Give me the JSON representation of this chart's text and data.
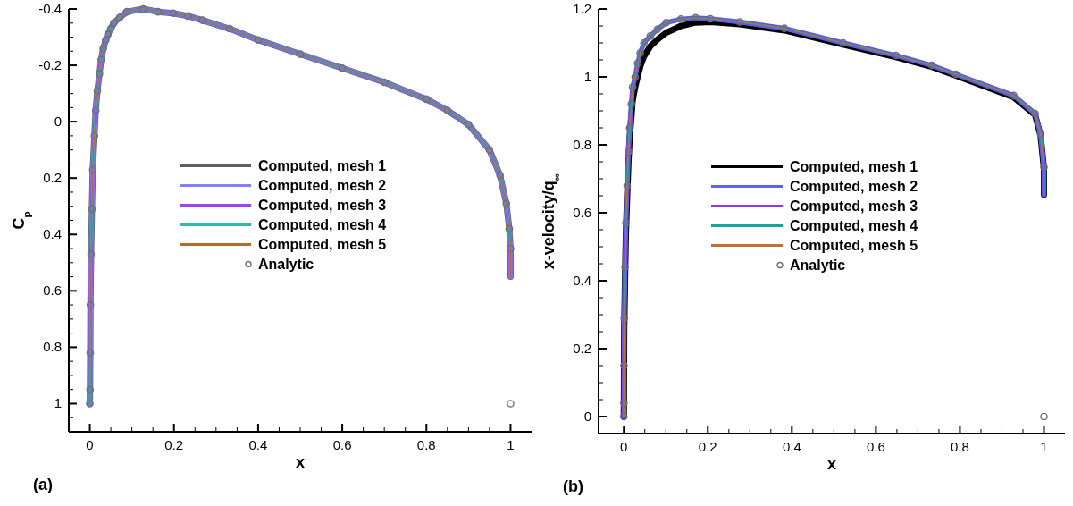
{
  "chart_data": [
    {
      "type": "line",
      "xlabel": "x",
      "ylabel": "C$_{p}$",
      "annotations": [
        "(a)"
      ],
      "legend": "center",
      "xlim": [
        -0.05,
        1.05
      ],
      "ylim": [
        1.1,
        -0.4
      ],
      "xticks": [
        0,
        {
          "value": 0.05,
          "label": null
        },
        {
          "value": 0.1,
          "label": null
        },
        {
          "value": 0.15,
          "label": null
        },
        0.2,
        {
          "value": 0.25,
          "label": null
        },
        {
          "value": 0.3,
          "label": null
        },
        {
          "value": 0.35,
          "label": null
        },
        0.4,
        {
          "value": 0.45,
          "label": null
        },
        {
          "value": 0.5,
          "label": null
        },
        {
          "value": 0.55,
          "label": null
        },
        0.6,
        {
          "value": 0.65,
          "label": null
        },
        {
          "value": 0.7,
          "label": null
        },
        {
          "value": 0.75,
          "label": null
        },
        0.8,
        {
          "value": 0.85,
          "label": null
        },
        {
          "value": 0.9,
          "label": null
        },
        {
          "value": 0.95,
          "label": null
        },
        1
      ],
      "yticks": [
        -0.4,
        {
          "value": -0.35,
          "label": null
        },
        {
          "value": -0.3,
          "label": null
        },
        {
          "value": -0.25,
          "label": null
        },
        -0.2,
        {
          "value": -0.15,
          "label": null
        },
        {
          "value": -0.1,
          "label": null
        },
        {
          "value": -0.05,
          "label": null
        },
        0,
        {
          "value": 0.05,
          "label": null
        },
        {
          "value": 0.1,
          "label": null
        },
        {
          "value": 0.15,
          "label": null
        },
        0.2,
        {
          "value": 0.25,
          "label": null
        },
        {
          "value": 0.3,
          "label": null
        },
        {
          "value": 0.35,
          "label": null
        },
        0.4,
        {
          "value": 0.45,
          "label": null
        },
        {
          "value": 0.5,
          "label": null
        },
        {
          "value": 0.55,
          "label": null
        },
        0.6,
        {
          "value": 0.65,
          "label": null
        },
        {
          "value": 0.7,
          "label": null
        },
        {
          "value": 0.75,
          "label": null
        },
        0.8,
        {
          "value": 0.85,
          "label": null
        },
        {
          "value": 0.9,
          "label": null
        },
        {
          "value": 0.95,
          "label": null
        },
        1,
        {
          "value": 1.05,
          "label": null
        }
      ],
      "x": [
        0,
        0.0005,
        0.001,
        0.0015,
        0.003,
        0.005,
        0.007,
        0.011,
        0.014,
        0.018,
        0.023,
        0.027,
        0.032,
        0.038,
        0.043,
        0.05,
        0.057,
        0.071,
        0.088,
        0.127,
        0.162,
        0.198,
        0.233,
        0.268,
        0.332,
        0.4,
        0.5,
        0.6,
        0.7,
        0.8,
        0.85,
        0.9,
        0.95,
        0.975,
        0.99,
        0.997,
        1,
        1
      ],
      "series": [
        {
          "name": "Computed, mesh 1",
          "color": "#606060",
          "values": [
            1.0,
            0.95,
            0.82,
            0.65,
            0.47,
            0.31,
            0.17,
            0.05,
            -0.04,
            -0.11,
            -0.17,
            -0.22,
            -0.26,
            -0.29,
            -0.31,
            -0.33,
            -0.35,
            -0.37,
            -0.39,
            -0.4,
            -0.39,
            -0.385,
            -0.375,
            -0.36,
            -0.33,
            -0.29,
            -0.24,
            -0.19,
            -0.14,
            -0.08,
            -0.04,
            0.01,
            0.1,
            0.19,
            0.29,
            0.38,
            0.45,
            0.55
          ]
        },
        {
          "name": "Computed, mesh 2",
          "color": "#8080ff",
          "values": [
            1.0,
            0.95,
            0.82,
            0.65,
            0.47,
            0.31,
            0.17,
            0.05,
            -0.04,
            -0.11,
            -0.17,
            -0.22,
            -0.26,
            -0.29,
            -0.31,
            -0.33,
            -0.35,
            -0.37,
            -0.39,
            -0.4,
            -0.39,
            -0.385,
            -0.375,
            -0.36,
            -0.33,
            -0.29,
            -0.24,
            -0.19,
            -0.14,
            -0.08,
            -0.04,
            0.01,
            0.1,
            0.19,
            0.29,
            0.38,
            0.45,
            0.55
          ]
        },
        {
          "name": "Computed, mesh 3",
          "color": "#a040f0",
          "values": [
            1.0,
            0.95,
            0.82,
            0.65,
            0.47,
            0.31,
            0.17,
            0.05,
            -0.04,
            -0.11,
            -0.17,
            -0.22,
            -0.26,
            -0.29,
            -0.31,
            -0.33,
            -0.35,
            -0.37,
            -0.39,
            -0.4,
            -0.39,
            -0.385,
            -0.375,
            -0.36,
            -0.33,
            -0.29,
            -0.24,
            -0.19,
            -0.14,
            -0.08,
            -0.04,
            0.01,
            0.1,
            0.19,
            0.29,
            0.38,
            0.45,
            0.55
          ]
        },
        {
          "name": "Computed, mesh 4",
          "color": "#30b8a8",
          "values": [
            1.0,
            0.95,
            0.82,
            0.65,
            0.47,
            0.31,
            0.17,
            0.05,
            -0.04,
            -0.11,
            -0.17,
            -0.22,
            -0.26,
            -0.29,
            -0.31,
            -0.33,
            -0.35,
            -0.37,
            -0.39,
            -0.4,
            -0.39,
            -0.385,
            -0.375,
            -0.36,
            -0.33,
            -0.29,
            -0.24,
            -0.19,
            -0.14,
            -0.08,
            -0.04,
            0.01,
            0.1,
            0.19,
            0.29,
            0.38,
            0.45,
            0.55
          ]
        },
        {
          "name": "Computed, mesh 5",
          "color": "#b06a2a",
          "values": [
            1.0,
            0.95,
            0.82,
            0.65,
            0.47,
            0.31,
            0.17,
            0.05,
            -0.04,
            -0.11,
            -0.17,
            -0.22,
            -0.26,
            -0.29,
            -0.31,
            -0.33,
            -0.35,
            -0.37,
            -0.39,
            -0.4,
            -0.39,
            -0.385,
            -0.375,
            -0.36,
            -0.33,
            -0.29,
            -0.24,
            -0.19,
            -0.14,
            -0.08,
            -0.04,
            0.01,
            0.1,
            0.19,
            0.29,
            0.38,
            0.45,
            0.55
          ]
        },
        {
          "name": "Analytic",
          "type": "scatter",
          "marker": "circle",
          "color": "#707070",
          "x": [
            0,
            0.0005,
            0.001,
            0.0015,
            0.003,
            0.005,
            0.007,
            0.011,
            0.014,
            0.018,
            0.023,
            0.027,
            0.032,
            0.038,
            0.043,
            0.05,
            0.057,
            0.071,
            0.088,
            0.127,
            0.162,
            0.198,
            0.233,
            0.268,
            0.332,
            0.4,
            0.5,
            0.6,
            0.7,
            0.8,
            0.85,
            0.9,
            0.95,
            0.975,
            0.99,
            0.997,
            1,
            1
          ],
          "values": [
            1.0,
            0.95,
            0.82,
            0.65,
            0.47,
            0.31,
            0.17,
            0.05,
            -0.04,
            -0.11,
            -0.17,
            -0.22,
            -0.26,
            -0.29,
            -0.31,
            -0.33,
            -0.35,
            -0.37,
            -0.39,
            -0.4,
            -0.39,
            -0.385,
            -0.375,
            -0.36,
            -0.33,
            -0.29,
            -0.24,
            -0.19,
            -0.14,
            -0.08,
            -0.04,
            0.01,
            0.1,
            0.19,
            0.29,
            0.38,
            0.45,
            1.0
          ]
        }
      ]
    },
    {
      "type": "line",
      "xlabel": "x",
      "ylabel": "x-velocity/q$_{∞}$",
      "annotations": [
        "(b)"
      ],
      "legend": "center",
      "xlim": [
        -0.06,
        1.05
      ],
      "ylim": [
        -0.05,
        1.2
      ],
      "xticks": [
        0,
        {
          "value": 0.05,
          "label": null
        },
        {
          "value": 0.1,
          "label": null
        },
        {
          "value": 0.15,
          "label": null
        },
        0.2,
        {
          "value": 0.25,
          "label": null
        },
        {
          "value": 0.3,
          "label": null
        },
        {
          "value": 0.35,
          "label": null
        },
        0.4,
        {
          "value": 0.45,
          "label": null
        },
        {
          "value": 0.5,
          "label": null
        },
        {
          "value": 0.55,
          "label": null
        },
        0.6,
        {
          "value": 0.65,
          "label": null
        },
        {
          "value": 0.7,
          "label": null
        },
        {
          "value": 0.75,
          "label": null
        },
        0.8,
        {
          "value": 0.85,
          "label": null
        },
        {
          "value": 0.9,
          "label": null
        },
        {
          "value": 0.95,
          "label": null
        },
        1
      ],
      "yticks": [
        0,
        {
          "value": 0.05,
          "label": null
        },
        {
          "value": 0.1,
          "label": null
        },
        {
          "value": 0.15,
          "label": null
        },
        0.2,
        {
          "value": 0.25,
          "label": null
        },
        {
          "value": 0.3,
          "label": null
        },
        {
          "value": 0.35,
          "label": null
        },
        0.4,
        {
          "value": 0.45,
          "label": null
        },
        {
          "value": 0.5,
          "label": null
        },
        {
          "value": 0.55,
          "label": null
        },
        0.6,
        {
          "value": 0.65,
          "label": null
        },
        {
          "value": 0.7,
          "label": null
        },
        {
          "value": 0.75,
          "label": null
        },
        0.8,
        {
          "value": 0.85,
          "label": null
        },
        {
          "value": 0.9,
          "label": null
        },
        {
          "value": 0.95,
          "label": null
        },
        1,
        {
          "value": 1.05,
          "label": null
        },
        {
          "value": 1.1,
          "label": null
        },
        {
          "value": 1.15,
          "label": null
        },
        1.2
      ],
      "x": [
        0,
        0.0002,
        0.0005,
        0.001,
        0.003,
        0.005,
        0.008,
        0.011,
        0.014,
        0.018,
        0.021,
        0.027,
        0.033,
        0.039,
        0.048,
        0.063,
        0.08,
        0.101,
        0.136,
        0.171,
        0.206,
        0.276,
        0.382,
        0.522,
        0.648,
        0.733,
        0.79,
        0.928,
        0.979,
        0.992,
        1,
        1
      ],
      "series": [
        {
          "name": "Computed, mesh 1",
          "color": "#000000",
          "values": [
            0,
            0.03,
            0.13,
            0.26,
            0.41,
            0.54,
            0.65,
            0.75,
            0.82,
            0.88,
            0.93,
            0.97,
            1.0,
            1.03,
            1.06,
            1.09,
            1.11,
            1.13,
            1.15,
            1.16,
            1.162,
            1.155,
            1.137,
            1.095,
            1.058,
            1.03,
            1.004,
            0.94,
            0.888,
            0.828,
            0.73,
            0.653
          ]
        },
        {
          "name": "Computed, mesh 2",
          "color": "#6060ff",
          "values": [
            0,
            0.04,
            0.15,
            0.29,
            0.44,
            0.57,
            0.68,
            0.78,
            0.85,
            0.92,
            0.97,
            1.0,
            1.04,
            1.07,
            1.1,
            1.12,
            1.14,
            1.16,
            1.17,
            1.174,
            1.171,
            1.162,
            1.143,
            1.1,
            1.063,
            1.034,
            1.008,
            0.945,
            0.892,
            0.832,
            0.734,
            0.653
          ]
        },
        {
          "name": "Computed, mesh 3",
          "color": "#9a30f0",
          "values": [
            0,
            0.04,
            0.15,
            0.29,
            0.44,
            0.57,
            0.68,
            0.78,
            0.85,
            0.92,
            0.97,
            1.0,
            1.04,
            1.07,
            1.1,
            1.12,
            1.14,
            1.16,
            1.17,
            1.174,
            1.171,
            1.162,
            1.143,
            1.1,
            1.063,
            1.034,
            1.008,
            0.945,
            0.892,
            0.832,
            0.734,
            0.653
          ]
        },
        {
          "name": "Computed, mesh 4",
          "color": "#10a8a0",
          "values": [
            0,
            0.04,
            0.15,
            0.29,
            0.44,
            0.57,
            0.68,
            0.78,
            0.85,
            0.92,
            0.97,
            1.0,
            1.04,
            1.07,
            1.1,
            1.12,
            1.14,
            1.16,
            1.17,
            1.174,
            1.171,
            1.162,
            1.143,
            1.1,
            1.063,
            1.034,
            1.008,
            0.945,
            0.892,
            0.832,
            0.734,
            0.653
          ]
        },
        {
          "name": "Computed, mesh 5",
          "color": "#c07030",
          "values": [
            0,
            0.04,
            0.15,
            0.29,
            0.44,
            0.57,
            0.68,
            0.78,
            0.85,
            0.92,
            0.97,
            1.0,
            1.04,
            1.07,
            1.1,
            1.12,
            1.14,
            1.16,
            1.17,
            1.174,
            1.171,
            1.162,
            1.143,
            1.1,
            1.063,
            1.034,
            1.008,
            0.945,
            0.892,
            0.832,
            0.734,
            0.653
          ]
        },
        {
          "name": "Analytic",
          "type": "scatter",
          "marker": "circle",
          "color": "#707070",
          "x": [
            0,
            0.0002,
            0.0005,
            0.001,
            0.003,
            0.005,
            0.008,
            0.011,
            0.014,
            0.018,
            0.021,
            0.027,
            0.033,
            0.039,
            0.048,
            0.063,
            0.08,
            0.101,
            0.136,
            0.171,
            0.206,
            0.276,
            0.382,
            0.522,
            0.648,
            0.733,
            0.79,
            0.928,
            0.979,
            0.992,
            1,
            1
          ],
          "values": [
            0,
            0.04,
            0.15,
            0.29,
            0.44,
            0.57,
            0.68,
            0.78,
            0.85,
            0.92,
            0.97,
            1.0,
            1.04,
            1.07,
            1.1,
            1.12,
            1.14,
            1.16,
            1.17,
            1.174,
            1.171,
            1.162,
            1.143,
            1.1,
            1.063,
            1.034,
            1.008,
            0.945,
            0.892,
            0.832,
            0.734,
            0
          ]
        }
      ]
    }
  ]
}
